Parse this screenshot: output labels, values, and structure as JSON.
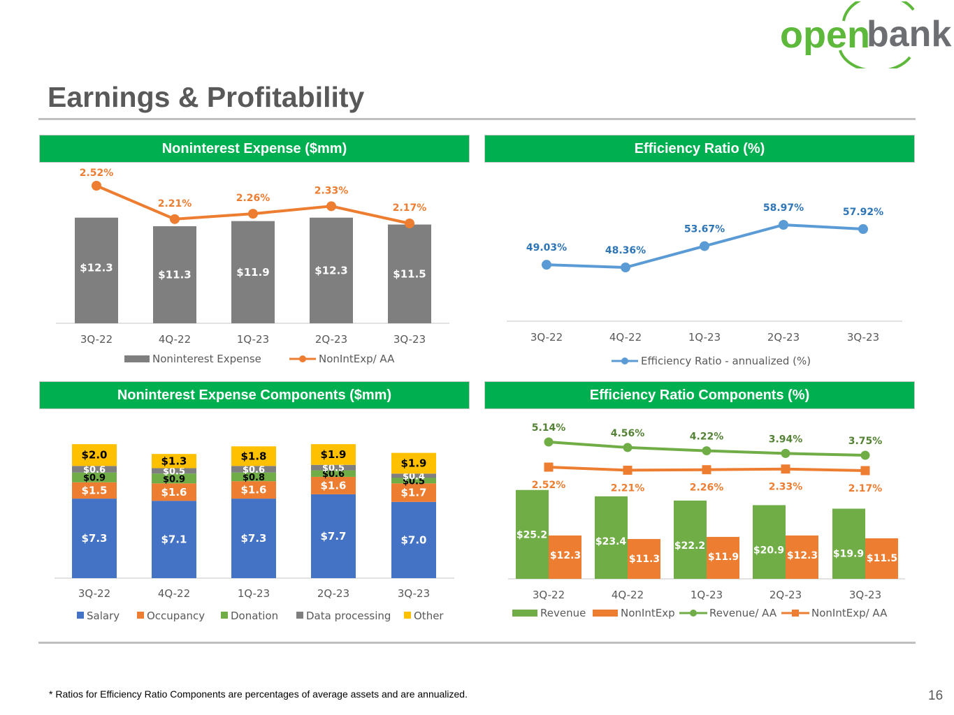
{
  "brand": {
    "logo_text_1": "open",
    "logo_text_2": "bank",
    "green": "#5db83b",
    "gray": "#6d6e71"
  },
  "page": {
    "title": "Earnings & Profitability",
    "footnote": "* Ratios for Efficiency Ratio Components are percentages of average assets and are annualized.",
    "page_number": "16"
  },
  "panels": {
    "p1_title": "Noninterest Expense ($mm)",
    "p2_title": "Efficiency Ratio (%)",
    "p3_title": "Noninterest Expense Components ($mm)",
    "p4_title": "Efficiency Ratio Components (%)"
  },
  "colors": {
    "header_green": "#00b050",
    "bar_gray": "#7f7f7f",
    "line_orange": "#ed7d31",
    "line_blue": "#5b9bd5",
    "salary": "#4472c4",
    "occupancy": "#ed7d31",
    "donation": "#70ad47",
    "data_processing": "#7f7f7f",
    "other": "#ffc000",
    "revenue": "#70ad47"
  },
  "chart_data": [
    {
      "type": "bar",
      "id": "nonint_expense",
      "categories": [
        "3Q-22",
        "4Q-22",
        "1Q-23",
        "2Q-23",
        "3Q-23"
      ],
      "series": [
        {
          "name": "Noninterest Expense",
          "kind": "bar",
          "values": [
            12.3,
            11.3,
            11.9,
            12.3,
            11.5
          ],
          "labels": [
            "$12.3",
            "$11.3",
            "$11.9",
            "$12.3",
            "$11.5"
          ]
        },
        {
          "name": "NonIntExp/ AA",
          "kind": "line",
          "values": [
            2.52,
            2.21,
            2.26,
            2.33,
            2.17
          ],
          "labels": [
            "2.52%",
            "2.21%",
            "2.26%",
            "2.33%",
            "2.17%"
          ]
        }
      ]
    },
    {
      "type": "line",
      "id": "efficiency_ratio",
      "categories": [
        "3Q-22",
        "4Q-22",
        "1Q-23",
        "2Q-23",
        "3Q-23"
      ],
      "series": [
        {
          "name": "Efficiency Ratio - annualized (%)",
          "values": [
            49.03,
            48.36,
            53.67,
            58.97,
            57.92
          ],
          "labels": [
            "49.03%",
            "48.36%",
            "53.67%",
            "58.97%",
            "57.92%"
          ]
        }
      ]
    },
    {
      "type": "bar",
      "stacked": true,
      "id": "nonint_expense_components",
      "categories": [
        "3Q-22",
        "4Q-22",
        "1Q-23",
        "2Q-23",
        "3Q-23"
      ],
      "series": [
        {
          "name": "Salary",
          "values": [
            7.3,
            7.1,
            7.3,
            7.7,
            7.0
          ],
          "labels": [
            "$7.3",
            "$7.1",
            "$7.3",
            "$7.7",
            "$7.0"
          ]
        },
        {
          "name": "Occupancy",
          "values": [
            1.5,
            1.6,
            1.6,
            1.6,
            1.7
          ],
          "labels": [
            "$1.5",
            "$1.6",
            "$1.6",
            "$1.6",
            "$1.7"
          ]
        },
        {
          "name": "Donation",
          "values": [
            0.9,
            0.9,
            0.8,
            0.6,
            0.5
          ],
          "labels": [
            "$0.9",
            "$0.9",
            "$0.8",
            "$0.6",
            "$0.5"
          ]
        },
        {
          "name": "Data processing",
          "values": [
            0.6,
            0.5,
            0.6,
            0.5,
            0.4
          ],
          "labels": [
            "$0.6",
            "$0.5",
            "$0.6",
            "$0.5",
            "$0.4"
          ]
        },
        {
          "name": "Other",
          "values": [
            2.0,
            1.3,
            1.8,
            1.9,
            1.9
          ],
          "labels": [
            "$2.0",
            "$1.3",
            "$1.8",
            "$1.9",
            "$1.9"
          ]
        }
      ]
    },
    {
      "type": "bar",
      "id": "efficiency_ratio_components",
      "categories": [
        "3Q-22",
        "4Q-22",
        "1Q-23",
        "2Q-23",
        "3Q-23"
      ],
      "series": [
        {
          "name": "Revenue",
          "kind": "bar",
          "values": [
            25.2,
            23.4,
            22.2,
            20.9,
            19.9
          ],
          "labels": [
            "$25.2",
            "$23.4",
            "$22.2",
            "$20.9",
            "$19.9"
          ]
        },
        {
          "name": "NonIntExp",
          "kind": "bar",
          "values": [
            12.3,
            11.3,
            11.9,
            12.3,
            11.5
          ],
          "labels": [
            "$12.3",
            "$11.3",
            "$11.9",
            "$12.3",
            "$11.5"
          ]
        },
        {
          "name": "Revenue/ AA",
          "kind": "line",
          "values": [
            5.14,
            4.56,
            4.22,
            3.94,
            3.75
          ],
          "labels": [
            "5.14%",
            "4.56%",
            "4.22%",
            "3.94%",
            "3.75%"
          ]
        },
        {
          "name": "NonIntExp/ AA",
          "kind": "line",
          "values": [
            2.52,
            2.21,
            2.26,
            2.33,
            2.17
          ],
          "labels": [
            "2.52%",
            "2.21%",
            "2.26%",
            "2.33%",
            "2.17%"
          ]
        }
      ]
    }
  ]
}
